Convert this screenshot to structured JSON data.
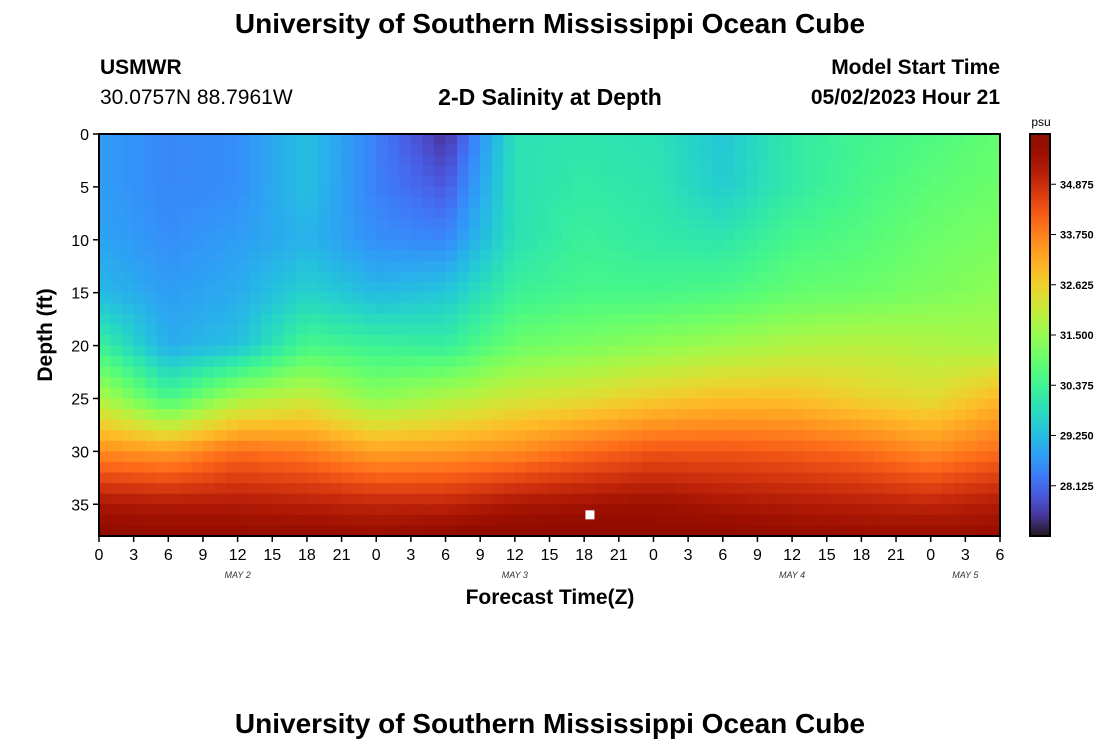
{
  "header": {
    "title": "University of Southern Mississippi Ocean Cube",
    "station": "USMWR",
    "coords": "30.0757N  88.7961W",
    "plot_title": "2-D Salinity at Depth",
    "start_label": "Model Start Time",
    "start_value": "05/02/2023 Hour 21"
  },
  "footer": {
    "title": "University of Southern Mississippi Ocean Cube"
  },
  "chart_data": {
    "type": "heatmap",
    "title": "2-D Salinity at Depth",
    "xlabel": "Forecast Time(Z)",
    "ylabel": "Depth (ft)",
    "x_tick_labels": [
      "0",
      "3",
      "6",
      "9",
      "12",
      "15",
      "18",
      "21",
      "0",
      "3",
      "6",
      "9",
      "12",
      "15",
      "18",
      "21",
      "0",
      "3",
      "6",
      "9",
      "12",
      "15",
      "18",
      "21",
      "0",
      "3",
      "6"
    ],
    "x_range_hours": [
      0,
      78
    ],
    "date_labels": [
      {
        "label": "MAY 2",
        "hour": 12
      },
      {
        "label": "MAY 3",
        "hour": 36
      },
      {
        "label": "MAY 4",
        "hour": 60
      },
      {
        "label": "MAY 5",
        "hour": 75
      }
    ],
    "y_ticks": [
      0,
      5,
      10,
      15,
      20,
      25,
      30,
      35
    ],
    "y_range": [
      0,
      38
    ],
    "y_inverted": true,
    "colorbar": {
      "unit": "psu",
      "ticks": [
        "34.875",
        "33.750",
        "32.625",
        "31.500",
        "30.375",
        "29.250",
        "28.125"
      ],
      "min": 27.0,
      "max": 36.0,
      "colormap": "turbo"
    },
    "marker": {
      "hour": 42.5,
      "depth": 36,
      "color": "#ffffff"
    },
    "grid_hours": [
      0,
      6,
      12,
      18,
      24,
      30,
      36,
      42,
      48,
      54,
      60,
      66,
      72,
      78
    ],
    "grid_depths": [
      0,
      5,
      10,
      15,
      20,
      25,
      30,
      35,
      38
    ],
    "salinity_psu": [
      [
        28.8,
        28.5,
        28.6,
        29.3,
        28.4,
        27.4,
        29.9,
        30.0,
        29.9,
        29.4,
        30.1,
        30.4,
        30.6,
        30.9
      ],
      [
        28.8,
        28.5,
        28.6,
        29.3,
        28.4,
        27.9,
        29.9,
        30.1,
        30.0,
        29.5,
        30.1,
        30.5,
        30.8,
        31.0
      ],
      [
        28.9,
        28.6,
        28.8,
        29.1,
        28.6,
        28.5,
        29.9,
        30.3,
        30.1,
        30.0,
        30.5,
        30.7,
        31.0,
        31.2
      ],
      [
        29.2,
        28.8,
        29.0,
        29.6,
        29.2,
        29.4,
        30.3,
        30.5,
        30.5,
        30.6,
        30.9,
        31.0,
        31.2,
        31.4
      ],
      [
        30.3,
        29.0,
        29.3,
        30.5,
        30.3,
        30.2,
        31.0,
        31.2,
        31.4,
        31.6,
        31.8,
        31.9,
        31.8,
        31.7
      ],
      [
        31.8,
        30.5,
        31.7,
        32.1,
        31.4,
        31.8,
        32.2,
        32.4,
        32.7,
        32.9,
        32.9,
        32.6,
        32.4,
        33.0
      ],
      [
        33.6,
        33.4,
        34.0,
        33.8,
        33.3,
        33.4,
        33.6,
        34.0,
        34.3,
        34.3,
        34.2,
        34.0,
        33.6,
        34.0
      ],
      [
        35.3,
        35.2,
        35.2,
        35.1,
        35.0,
        35.0,
        35.3,
        35.4,
        35.5,
        35.3,
        35.2,
        35.1,
        35.0,
        35.2
      ],
      [
        35.8,
        35.7,
        35.7,
        35.7,
        35.6,
        35.8,
        35.9,
        35.9,
        35.8,
        35.8,
        35.7,
        35.6,
        35.6,
        35.6
      ]
    ]
  }
}
